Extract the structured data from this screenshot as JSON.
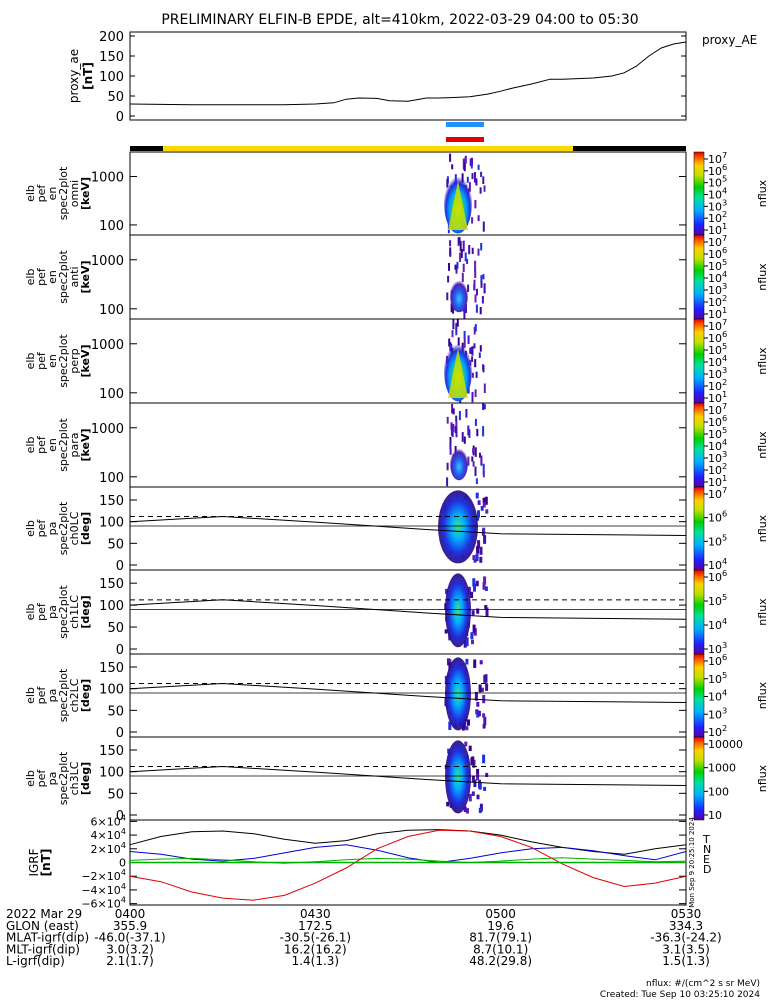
{
  "title": "PRELIMINARY ELFIN-B EPDE, alt=410km, 2022-03-29 04:00 to 05:30",
  "colors": {
    "sci_bar_yellow": "#ffd800",
    "sci_bar_black": "#000000",
    "marker_blue": "#1e90ff",
    "marker_red": "#e00000",
    "bx_red": "#e00000",
    "by_green": "#00b000",
    "bz_blue": "#0000d0",
    "btotal_black": "#000000"
  },
  "colorbar_label": "nflux",
  "footer": {
    "nflux_units": "nflux: #/(cm^2 s sr MeV)",
    "created": "Created: Tue Sep 10 03:25:10 2024",
    "stamp": "Mon Sep 9 20:25:10 2024"
  },
  "chart_data": [
    {
      "type": "line",
      "panel": "proxy_ae",
      "ylabel": [
        "proxy_ae",
        "[nT]"
      ],
      "series_label": "proxy_AE",
      "yticks": [
        "200",
        "150",
        "100",
        "50",
        "0"
      ],
      "ylim": [
        -10,
        210
      ],
      "xlim_min": [
        0,
        90
      ],
      "x": [
        0,
        5,
        10,
        15,
        20,
        25,
        30,
        33,
        35,
        37,
        40,
        42,
        45,
        48,
        50,
        52,
        55,
        58,
        60,
        62,
        65,
        68,
        70,
        72,
        75,
        78,
        80,
        82,
        84,
        86,
        88,
        90
      ],
      "values": [
        30,
        29,
        28,
        28,
        28,
        28,
        30,
        33,
        42,
        45,
        44,
        38,
        37,
        45,
        45,
        46,
        48,
        55,
        62,
        70,
        80,
        92,
        92,
        93,
        95,
        100,
        108,
        125,
        150,
        170,
        180,
        185
      ]
    },
    {
      "type": "heatmap",
      "panel": "en_omni",
      "ylabel": [
        "elb",
        "pef",
        "en",
        "spec2plot",
        "omni",
        "[keV]"
      ],
      "yticks": [
        "1000",
        "100"
      ],
      "scale": "log",
      "colorbar_ticks": [
        "10^7",
        "10^6",
        "10^5",
        "10^4",
        "10^3",
        "10^2",
        "10^1"
      ]
    },
    {
      "type": "heatmap",
      "panel": "en_anti",
      "ylabel": [
        "elb",
        "pef",
        "en",
        "spec2plot",
        "anti",
        "[keV]"
      ],
      "yticks": [
        "1000",
        "100"
      ],
      "scale": "log",
      "colorbar_ticks": [
        "10^7",
        "10^6",
        "10^5",
        "10^4",
        "10^3",
        "10^2",
        "10^1"
      ]
    },
    {
      "type": "heatmap",
      "panel": "en_perp",
      "ylabel": [
        "elb",
        "pef",
        "en",
        "spec2plot",
        "perp",
        "[keV]"
      ],
      "yticks": [
        "1000",
        "100"
      ],
      "scale": "log",
      "colorbar_ticks": [
        "10^7",
        "10^6",
        "10^5",
        "10^4",
        "10^3",
        "10^2",
        "10^1"
      ]
    },
    {
      "type": "heatmap",
      "panel": "en_para",
      "ylabel": [
        "elb",
        "pef",
        "en",
        "spec2plot",
        "para",
        "[keV]"
      ],
      "yticks": [
        "1000",
        "100"
      ],
      "scale": "log",
      "colorbar_ticks": [
        "10^7",
        "10^6",
        "10^5",
        "10^4",
        "10^3",
        "10^2",
        "10^1"
      ]
    },
    {
      "type": "heatmap",
      "panel": "pa_ch0LC",
      "ylabel": [
        "elb",
        "pef",
        "pa",
        "spec2plot",
        "ch0LC",
        "[deg]"
      ],
      "yticks": [
        "150",
        "100",
        "50",
        "0"
      ],
      "colorbar_ticks": [
        "10^7",
        "10^6",
        "10^5",
        "10^4"
      ]
    },
    {
      "type": "heatmap",
      "panel": "pa_ch1LC",
      "ylabel": [
        "elb",
        "pef",
        "pa",
        "spec2plot",
        "ch1LC",
        "[deg]"
      ],
      "yticks": [
        "150",
        "100",
        "50",
        "0"
      ],
      "colorbar_ticks": [
        "10^6",
        "10^5",
        "10^4",
        "10^3"
      ]
    },
    {
      "type": "heatmap",
      "panel": "pa_ch2LC",
      "ylabel": [
        "elb",
        "pef",
        "pa",
        "spec2plot",
        "ch2LC",
        "[deg]"
      ],
      "yticks": [
        "150",
        "100",
        "50",
        "0"
      ],
      "colorbar_ticks": [
        "10^6",
        "10^5",
        "10^4",
        "10^3",
        "10^2"
      ]
    },
    {
      "type": "heatmap",
      "panel": "pa_ch3LC",
      "ylabel": [
        "elb",
        "pef",
        "pa",
        "spec2plot",
        "ch3LC",
        "[deg]"
      ],
      "yticks": [
        "150",
        "100",
        "50",
        "0"
      ],
      "colorbar_ticks": [
        "10000",
        "1000",
        "100",
        "10"
      ]
    },
    {
      "type": "line",
      "panel": "igrf",
      "ylabel": [
        "IGRF",
        "[nT]"
      ],
      "yticks": [
        "6×10^4",
        "4×10^4",
        "2×10^4",
        "0",
        "−2×10^4",
        "−4×10^4",
        "−6×10^4"
      ],
      "ylim": [
        -62000,
        62000
      ],
      "x": [
        0,
        5,
        10,
        15,
        20,
        25,
        30,
        35,
        40,
        45,
        50,
        55,
        60,
        65,
        70,
        75,
        80,
        85,
        90
      ],
      "series": [
        {
          "name": "T",
          "values": [
            26000,
            38000,
            45000,
            46000,
            42000,
            34000,
            28000,
            32000,
            42000,
            47000,
            48000,
            46000,
            40000,
            30000,
            22000,
            16000,
            12000,
            20000,
            26000
          ]
        },
        {
          "name": "N",
          "values": [
            16000,
            12000,
            5000,
            2000,
            6000,
            14000,
            22000,
            26000,
            18000,
            7000,
            0,
            6000,
            14000,
            20000,
            22000,
            17000,
            10000,
            4000,
            16000
          ]
        },
        {
          "name": "E",
          "values": [
            3000,
            5000,
            6000,
            4000,
            1000,
            -1000,
            1000,
            4000,
            6000,
            5000,
            2000,
            0,
            2000,
            5000,
            7000,
            5000,
            3000,
            1000,
            2000
          ]
        },
        {
          "name": "D",
          "values": [
            -20000,
            -28000,
            -43000,
            -52000,
            -55000,
            -48000,
            -30000,
            -8000,
            20000,
            38000,
            47000,
            46000,
            38000,
            22000,
            -2000,
            -22000,
            -35000,
            -30000,
            -20000
          ]
        }
      ]
    }
  ],
  "bottom_rows": [
    {
      "label": "2022 Mar 29",
      "values": [
        "0400",
        "0430",
        "0500",
        "0530"
      ]
    },
    {
      "label": "GLON (east)",
      "values": [
        "355.9",
        "172.5",
        "19.6",
        "334.3"
      ]
    },
    {
      "label": "MLAT-igrf(dip)",
      "values": [
        "-46.0(-37.1)",
        "-30.5(-26.1)",
        "81.7(79.1)",
        "-36.3(-24.2)"
      ]
    },
    {
      "label": "MLT-igrf(dip)",
      "values": [
        "3.0(3.2)",
        "16.2(16.2)",
        "8.7(10.1)",
        "3.1(3.5)"
      ]
    },
    {
      "label": "L-igrf(dip)",
      "values": [
        "2.1(1.7)",
        "1.4(1.3)",
        "48.2(29.8)",
        "1.5(1.3)"
      ]
    }
  ]
}
